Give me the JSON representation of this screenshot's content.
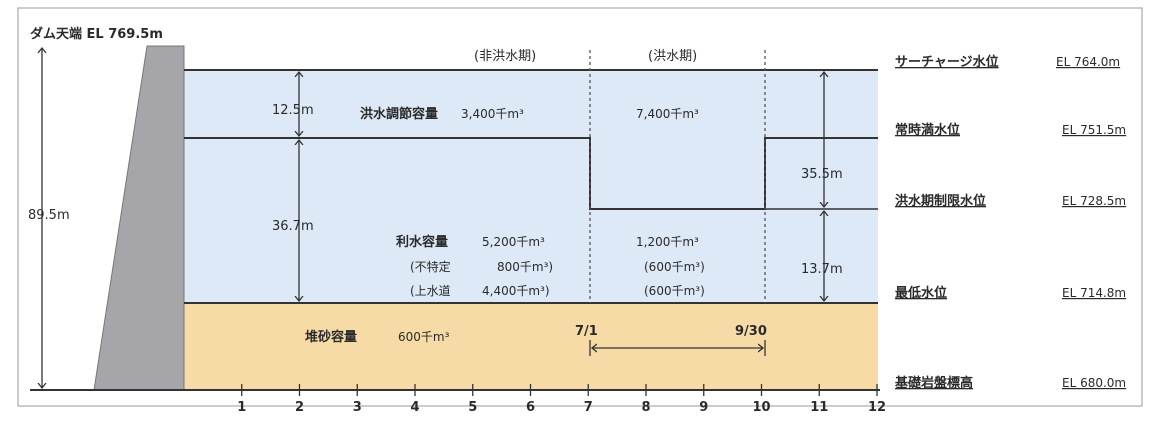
{
  "dam_crest": "ダム天端 EL 769.5m",
  "total_height": "89.5m",
  "periods": {
    "non_flood": "(非洪水期)",
    "flood": "(洪水期)"
  },
  "dims": {
    "flood_layer": "12.5m",
    "conservation": "36.7m",
    "flood_right": "35.5m",
    "lower_right": "13.7m"
  },
  "flood_control": {
    "label": "洪水調節容量",
    "non_flood_value": "3,400千m³",
    "flood_value": "7,400千m³"
  },
  "water_use": {
    "label": "利水容量",
    "value": "5,200千m³",
    "sub1_label": "(不特定",
    "sub1_value": "800千m³)",
    "sub2_label": "(上水道",
    "sub2_value": "4,400千m³)",
    "flood_value": "1,200千m³",
    "flood_sub1": "(600千m³)",
    "flood_sub2": "(600千m³)"
  },
  "sediment": {
    "label": "堆砂容量",
    "value": "600千m³"
  },
  "flood_period": {
    "start": "7/1",
    "end": "9/30"
  },
  "levels": [
    {
      "name": "サーチャージ水位",
      "value": "EL 764.0m"
    },
    {
      "name": "常時満水位",
      "value": "EL 751.5m"
    },
    {
      "name": "洪水期制限水位",
      "value": "EL 728.5m"
    },
    {
      "name": "最低水位",
      "value": "EL 714.8m"
    },
    {
      "name": "基礎岩盤標高",
      "value": "EL 680.0m"
    }
  ],
  "months": [
    "1",
    "2",
    "3",
    "4",
    "5",
    "6",
    "7",
    "8",
    "9",
    "10",
    "11",
    "12"
  ],
  "colors": {
    "water": "#dde9f7",
    "sediment": "#f7dba6",
    "dam": "#a6a6aa"
  }
}
